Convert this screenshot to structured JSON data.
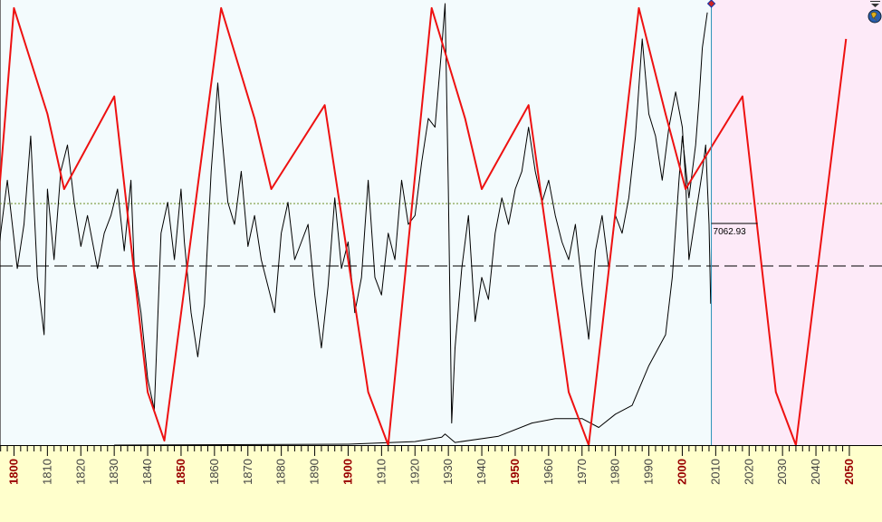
{
  "chart_data": {
    "type": "line",
    "title": "",
    "xlabel": "",
    "ylabel": "",
    "xlim": [
      1795,
      2050
    ],
    "x_ticks": [
      {
        "label": "1800",
        "value": 1800,
        "major": true
      },
      {
        "label": "1810",
        "value": 1810,
        "major": false
      },
      {
        "label": "1820",
        "value": 1820,
        "major": false
      },
      {
        "label": "1830",
        "value": 1830,
        "major": false
      },
      {
        "label": "1840",
        "value": 1840,
        "major": false
      },
      {
        "label": "1850",
        "value": 1850,
        "major": true
      },
      {
        "label": "1860",
        "value": 1860,
        "major": false
      },
      {
        "label": "1870",
        "value": 1870,
        "major": false
      },
      {
        "label": "1880",
        "value": 1880,
        "major": false
      },
      {
        "label": "1890",
        "value": 1890,
        "major": false
      },
      {
        "label": "1900",
        "value": 1900,
        "major": true
      },
      {
        "label": "1910",
        "value": 1910,
        "major": false
      },
      {
        "label": "1920",
        "value": 1920,
        "major": false
      },
      {
        "label": "1930",
        "value": 1930,
        "major": false
      },
      {
        "label": "1940",
        "value": 1940,
        "major": false
      },
      {
        "label": "1950",
        "value": 1950,
        "major": true
      },
      {
        "label": "1960",
        "value": 1960,
        "major": false
      },
      {
        "label": "1970",
        "value": 1970,
        "major": false
      },
      {
        "label": "1980",
        "value": 1980,
        "major": false
      },
      {
        "label": "1990",
        "value": 1990,
        "major": false
      },
      {
        "label": "2000",
        "value": 2000,
        "major": true
      },
      {
        "label": "2010",
        "value": 2010,
        "major": false
      },
      {
        "label": "2020",
        "value": 2020,
        "major": false
      },
      {
        "label": "2030",
        "value": 2030,
        "major": false
      },
      {
        "label": "2040",
        "value": 2040,
        "major": false
      },
      {
        "label": "2050",
        "value": 2050,
        "major": true
      }
    ],
    "current_value_label": "7062.93",
    "last_data_year": 2008.7,
    "colors": {
      "plot_background": "#f3fbfd",
      "projection_background": "#fdeaf8",
      "axis_background": "#ffffcc",
      "cycle_line": "#ee1111",
      "price_line": "#000000",
      "major_tick_label": "#990000",
      "minor_tick_label": "#444444",
      "cursor_line": "#2a90b8",
      "reference_dash": "#000000",
      "reference_dot": "#6b8e23"
    },
    "series": [
      {
        "kind": "cycle",
        "points": [
          [
            1795,
            0.52
          ],
          [
            1800,
            0.99
          ],
          [
            1810,
            0.75
          ],
          [
            1815,
            0.58
          ],
          [
            1830,
            0.79
          ],
          [
            1840,
            0.12
          ],
          [
            1845,
            0.01
          ],
          [
            1862,
            0.99
          ],
          [
            1872,
            0.74
          ],
          [
            1877,
            0.58
          ],
          [
            1893,
            0.77
          ],
          [
            1906,
            0.12
          ],
          [
            1912,
            0.0
          ],
          [
            1925,
            0.99
          ],
          [
            1935,
            0.74
          ],
          [
            1940,
            0.58
          ],
          [
            1954,
            0.77
          ],
          [
            1966,
            0.12
          ],
          [
            1972,
            0.0
          ],
          [
            1987,
            0.99
          ],
          [
            1995,
            0.75
          ],
          [
            2001,
            0.58
          ],
          [
            2018,
            0.79
          ],
          [
            2028,
            0.12
          ],
          [
            2034,
            0.0
          ],
          [
            2049,
            0.92
          ]
        ]
      },
      {
        "kind": "oscillator",
        "points": [
          [
            1795,
            0.42
          ],
          [
            1798,
            0.6
          ],
          [
            1801,
            0.4
          ],
          [
            1803,
            0.5
          ],
          [
            1805,
            0.7
          ],
          [
            1807,
            0.38
          ],
          [
            1809,
            0.25
          ],
          [
            1810,
            0.58
          ],
          [
            1812,
            0.42
          ],
          [
            1814,
            0.62
          ],
          [
            1816,
            0.68
          ],
          [
            1818,
            0.55
          ],
          [
            1820,
            0.45
          ],
          [
            1822,
            0.52
          ],
          [
            1825,
            0.4
          ],
          [
            1827,
            0.48
          ],
          [
            1829,
            0.52
          ],
          [
            1831,
            0.58
          ],
          [
            1833,
            0.44
          ],
          [
            1835,
            0.6
          ],
          [
            1836,
            0.4
          ],
          [
            1838,
            0.3
          ],
          [
            1840,
            0.15
          ],
          [
            1842,
            0.08
          ],
          [
            1844,
            0.48
          ],
          [
            1846,
            0.55
          ],
          [
            1848,
            0.42
          ],
          [
            1850,
            0.58
          ],
          [
            1851,
            0.46
          ],
          [
            1853,
            0.3
          ],
          [
            1855,
            0.2
          ],
          [
            1857,
            0.32
          ],
          [
            1859,
            0.62
          ],
          [
            1861,
            0.82
          ],
          [
            1862,
            0.72
          ],
          [
            1864,
            0.55
          ],
          [
            1866,
            0.5
          ],
          [
            1868,
            0.62
          ],
          [
            1870,
            0.45
          ],
          [
            1872,
            0.52
          ],
          [
            1874,
            0.42
          ],
          [
            1876,
            0.36
          ],
          [
            1878,
            0.3
          ],
          [
            1880,
            0.48
          ],
          [
            1882,
            0.55
          ],
          [
            1884,
            0.42
          ],
          [
            1886,
            0.46
          ],
          [
            1888,
            0.5
          ],
          [
            1890,
            0.34
          ],
          [
            1892,
            0.22
          ],
          [
            1894,
            0.36
          ],
          [
            1896,
            0.56
          ],
          [
            1898,
            0.4
          ],
          [
            1900,
            0.46
          ],
          [
            1902,
            0.3
          ],
          [
            1904,
            0.38
          ],
          [
            1906,
            0.6
          ],
          [
            1908,
            0.38
          ],
          [
            1910,
            0.34
          ],
          [
            1912,
            0.48
          ],
          [
            1914,
            0.42
          ],
          [
            1916,
            0.6
          ],
          [
            1918,
            0.5
          ],
          [
            1920,
            0.52
          ],
          [
            1922,
            0.64
          ],
          [
            1924,
            0.74
          ],
          [
            1926,
            0.72
          ],
          [
            1928,
            0.9
          ],
          [
            1929,
            1.0
          ],
          [
            1930,
            0.58
          ],
          [
            1931,
            0.05
          ],
          [
            1932,
            0.22
          ],
          [
            1934,
            0.4
          ],
          [
            1936,
            0.52
          ],
          [
            1938,
            0.28
          ],
          [
            1940,
            0.38
          ],
          [
            1942,
            0.33
          ],
          [
            1944,
            0.48
          ],
          [
            1946,
            0.56
          ],
          [
            1948,
            0.5
          ],
          [
            1950,
            0.58
          ],
          [
            1952,
            0.62
          ],
          [
            1954,
            0.72
          ],
          [
            1956,
            0.62
          ],
          [
            1958,
            0.55
          ],
          [
            1960,
            0.6
          ],
          [
            1962,
            0.52
          ],
          [
            1964,
            0.46
          ],
          [
            1966,
            0.42
          ],
          [
            1968,
            0.5
          ],
          [
            1970,
            0.36
          ],
          [
            1972,
            0.24
          ],
          [
            1974,
            0.44
          ],
          [
            1976,
            0.52
          ],
          [
            1978,
            0.4
          ],
          [
            1980,
            0.52
          ],
          [
            1982,
            0.48
          ],
          [
            1984,
            0.56
          ],
          [
            1986,
            0.7
          ],
          [
            1988,
            0.92
          ],
          [
            1990,
            0.75
          ],
          [
            1992,
            0.7
          ],
          [
            1994,
            0.6
          ],
          [
            1996,
            0.72
          ],
          [
            1998,
            0.8
          ],
          [
            2000,
            0.72
          ],
          [
            2001,
            0.6
          ],
          [
            2002,
            0.42
          ],
          [
            2004,
            0.52
          ],
          [
            2006,
            0.62
          ],
          [
            2007,
            0.68
          ],
          [
            2008,
            0.5
          ],
          [
            2008.5,
            0.32
          ]
        ]
      },
      {
        "kind": "index",
        "points": [
          [
            1830,
            0.0
          ],
          [
            1900,
            0.002
          ],
          [
            1920,
            0.008
          ],
          [
            1928,
            0.018
          ],
          [
            1929,
            0.025
          ],
          [
            1932,
            0.006
          ],
          [
            1945,
            0.02
          ],
          [
            1955,
            0.05
          ],
          [
            1962,
            0.06
          ],
          [
            1970,
            0.06
          ],
          [
            1975,
            0.04
          ],
          [
            1980,
            0.07
          ],
          [
            1985,
            0.09
          ],
          [
            1990,
            0.18
          ],
          [
            1995,
            0.25
          ],
          [
            1997,
            0.38
          ],
          [
            1999,
            0.6
          ],
          [
            2000,
            0.7
          ],
          [
            2002,
            0.56
          ],
          [
            2004,
            0.68
          ],
          [
            2005,
            0.78
          ],
          [
            2006,
            0.9
          ],
          [
            2007.5,
            0.98
          ]
        ]
      }
    ]
  }
}
